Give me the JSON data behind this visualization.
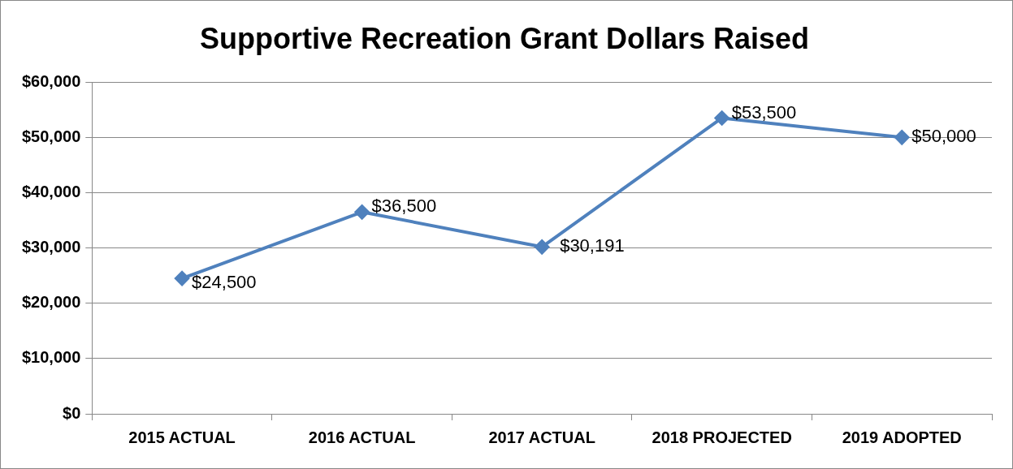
{
  "chart_data": {
    "type": "line",
    "title": "Supportive Recreation Grant Dollars Raised",
    "categories": [
      "2015 ACTUAL",
      "2016 ACTUAL",
      "2017 ACTUAL",
      "2018 PROJECTED",
      "2019 ADOPTED"
    ],
    "series": [
      {
        "color": "#4f81bd",
        "values": [
          24500,
          36500,
          30191,
          53500,
          50000
        ],
        "value_labels": [
          "$24,500",
          "$36,500",
          "$30,191",
          "$53,500",
          "$50,000"
        ]
      }
    ],
    "ylim": [
      0,
      60000
    ],
    "yticks": [
      {
        "value": 0,
        "label": "$0"
      },
      {
        "value": 10000,
        "label": "$10,000"
      },
      {
        "value": 20000,
        "label": "$20,000"
      },
      {
        "value": 30000,
        "label": "$30,000"
      },
      {
        "value": 40000,
        "label": "$40,000"
      },
      {
        "value": 50000,
        "label": "$50,000"
      },
      {
        "value": 60000,
        "label": "$60,000"
      }
    ],
    "grid": "y",
    "legend": false,
    "marker": "diamond",
    "line_style": "solid"
  }
}
